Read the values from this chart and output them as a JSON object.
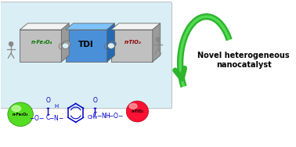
{
  "background_color": "#ffffff",
  "left_panel_bg": "#daeef5",
  "gray_piece": "#c0c0c0",
  "blue_piece": "#4a90d9",
  "arrow_color": "#2db52d",
  "arrow_text": "Novel heterogeneous\nnanocatalyst",
  "arrow_text_color": "#000000",
  "chem_color": "#0000cc",
  "fe3o4_sphere_color": "#55dd22",
  "tio2_sphere_color": "#ff1133",
  "fe3o4_label": "n-Fe₃O₄",
  "tdi_label": "TDI",
  "tio2_top_label": "n-TiO₂",
  "fe3o4_top_label": "n-Fe₃O₄",
  "fe3o4_sphere_label": "n-Fe₃O₄",
  "tio2_sphere_label": "n-TiO₂",
  "figsize": [
    3.78,
    1.88
  ],
  "dpi": 100
}
